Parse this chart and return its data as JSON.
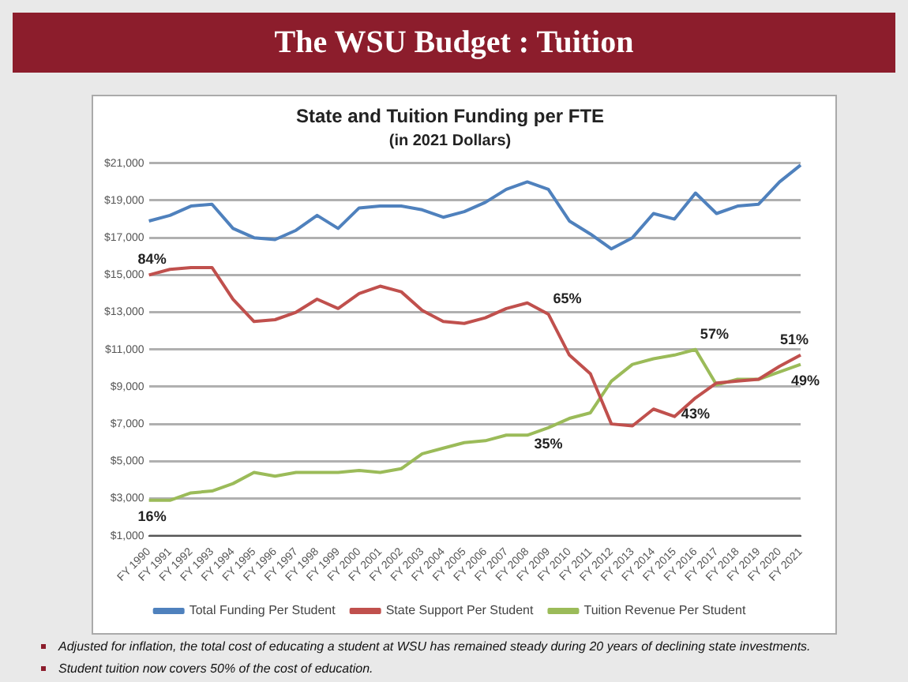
{
  "chart_data": {
    "type": "line",
    "title": "The WSU Budget : Tuition",
    "subtitle": "State and Tuition Funding per FTE",
    "categories": [
      "FY 1990",
      "FY 1991",
      "FY 1992",
      "FY 1993",
      "FY 1994",
      "FY 1995",
      "FY 1996",
      "FY 1997",
      "FY 1998",
      "FY 1999",
      "FY 2000",
      "FY 2001",
      "FY 2002",
      "FY 2003",
      "FY 2004",
      "FY 2005",
      "FY 2006",
      "FY 2007",
      "FY 2008",
      "FY 2009",
      "FY 2010",
      "FY 2011",
      "FY 2012",
      "FY 2013",
      "FY 2014",
      "FY 2015",
      "FY 2016",
      "FY 2017",
      "FY 2018",
      "FY 2019",
      "FY 2020",
      "FY 2021"
    ],
    "series": [
      {
        "name": "Total Funding Per Student",
        "color": "#4f81bd",
        "values": [
          17900,
          18200,
          18700,
          18800,
          17500,
          17000,
          16900,
          17400,
          18200,
          17500,
          18600,
          18700,
          18700,
          18500,
          18100,
          18400,
          18900,
          19600,
          20000,
          19600,
          17900,
          17200,
          16400,
          17000,
          18300,
          18000,
          19400,
          18300,
          18700,
          18800,
          20000,
          20900
        ]
      },
      {
        "name": "State Support Per Student",
        "color": "#c0504d",
        "values": [
          15000,
          15300,
          15400,
          15400,
          13700,
          12500,
          12600,
          13000,
          13700,
          13200,
          14000,
          14400,
          14100,
          13100,
          12500,
          12400,
          12700,
          13200,
          13500,
          12900,
          10700,
          9700,
          7000,
          6900,
          7800,
          7400,
          8400,
          9200,
          9300,
          9400,
          10100,
          10700
        ]
      },
      {
        "name": "Tuition Revenue Per Student",
        "color": "#9bbb59",
        "values": [
          2900,
          2900,
          3300,
          3400,
          3800,
          4400,
          4200,
          4400,
          4400,
          4400,
          4500,
          4400,
          4600,
          5400,
          5700,
          6000,
          6100,
          6400,
          6400,
          6800,
          7300,
          7600,
          9300,
          10200,
          10500,
          10700,
          11000,
          9100,
          9400,
          9400,
          9800,
          10200
        ]
      }
    ],
    "ylim": [
      1000,
      21000
    ],
    "yticks": [
      {
        "value": 1000,
        "label": "$1,000"
      },
      {
        "value": 3000,
        "label": "$3,000"
      },
      {
        "value": 5000,
        "label": "$5,000"
      },
      {
        "value": 7000,
        "label": "$7,000"
      },
      {
        "value": 9000,
        "label": "$9,000"
      },
      {
        "value": 11000,
        "label": "$11,000"
      },
      {
        "value": 13000,
        "label": "$13,000"
      },
      {
        "value": 15000,
        "label": "$15,000"
      },
      {
        "value": 17000,
        "label": "$17,000"
      },
      {
        "value": 19000,
        "label": "$19,000"
      },
      {
        "value": 21000,
        "label": "$21,000"
      }
    ],
    "grid": "y",
    "legend": "bottom",
    "marker": "none",
    "line_style": "solid",
    "annotations": [
      "(in 2021 Dollars)",
      {
        "text": "84%",
        "x": "FY 1990",
        "y": 15000
      },
      {
        "text": "16%",
        "x": "FY 1990",
        "y": 2900
      },
      {
        "text": "65%",
        "x": "FY 2009",
        "y": 12900
      },
      {
        "text": "35%",
        "x": "FY 2009",
        "y": 6800
      },
      {
        "text": "57%",
        "x": "FY 2016",
        "y": 11000
      },
      {
        "text": "43%",
        "x": "FY 2016",
        "y": 8400
      },
      {
        "text": "51%",
        "x": "FY 2021",
        "y": 10700
      },
      {
        "text": "49%",
        "x": "FY 2021",
        "y": 10200
      },
      "Adjusted for inflation, the total cost of educating a student at WSU has remained steady during 20 years of declining state investments.",
      "Student tuition now covers 50% of the cost of education."
    ]
  }
}
